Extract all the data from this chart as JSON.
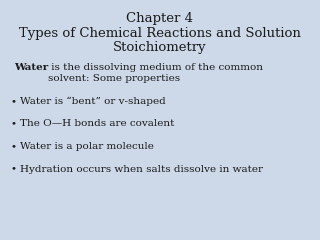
{
  "title_line1": "Chapter 4",
  "title_line2": "Types of Chemical Reactions and Solution",
  "title_line3": "Stoichiometry",
  "title_fontsize": 9.5,
  "body_fontsize": 7.5,
  "intro_bold": "Water",
  "intro_rest": " is the dissolving medium of the common\nsolvent: Some properties",
  "bullet_points": [
    "Water is “bent” or v-shaped",
    "The O—H bonds are covalent",
    "Water is a polar molecule",
    "Hydration occurs when salts dissolve in water"
  ],
  "bg_color": "#cdd9e8",
  "text_color": "#1a1a1a",
  "title_color": "#1a1a1a"
}
